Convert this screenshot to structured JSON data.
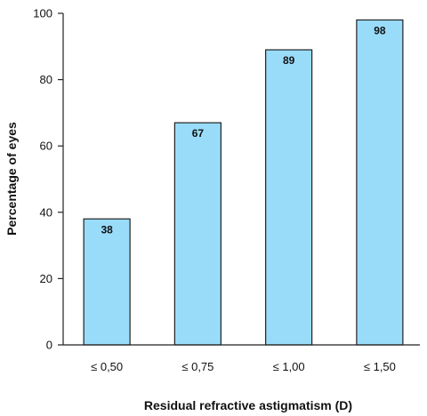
{
  "chart_data": {
    "type": "bar",
    "categories": [
      "≤ 0,50",
      "≤ 0,75",
      "≤ 1,00",
      "≤ 1,50"
    ],
    "values": [
      38,
      67,
      89,
      98
    ],
    "data_labels": [
      "38",
      "67",
      "89",
      "98"
    ],
    "title": "",
    "xlabel": "Residual refractive astigmatism (D)",
    "ylabel": "Percentage of eyes",
    "ylim": [
      0,
      100
    ],
    "yticks": [
      0,
      20,
      40,
      60,
      80,
      100
    ],
    "grid": false,
    "legend": "none",
    "colors": {
      "bar_fill": "#99dcfa",
      "bar_stroke": "#222222",
      "axis": "#222222"
    }
  }
}
